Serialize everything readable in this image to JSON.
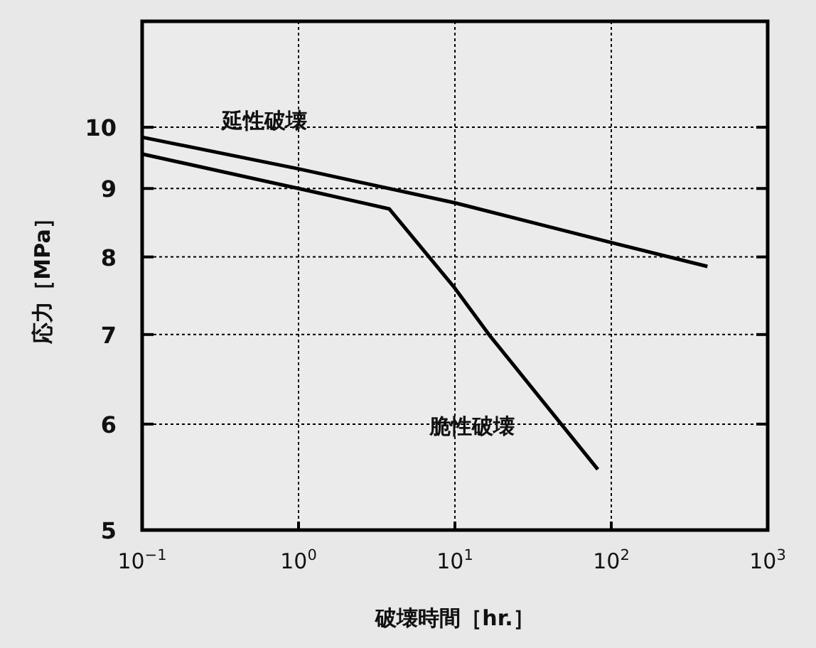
{
  "chart_data": {
    "type": "line",
    "xlabel": "破壊時間［hr.］",
    "ylabel": "応力［MPa］",
    "log": "xy",
    "xlim": [
      0.1,
      1000
    ],
    "ylim": [
      5,
      12
    ],
    "xticks": [
      {
        "value": 0.1,
        "label": "10$^{−1}$"
      },
      {
        "value": 1,
        "label": "10$^{0}$"
      },
      {
        "value": 10,
        "label": "10$^{1}$"
      },
      {
        "value": 100,
        "label": "10$^{2}$"
      },
      {
        "value": 1000,
        "label": "10$^{3}$"
      }
    ],
    "yticks": [
      5,
      6,
      7,
      8,
      9,
      10
    ],
    "grid": true,
    "line_style": "solid",
    "marker": "none",
    "series": [
      {
        "color": "#000000",
        "x": [
          0.1,
          1,
          10,
          100,
          412
        ],
        "values": [
          9.83,
          9.31,
          8.78,
          8.2,
          7.87
        ]
      },
      {
        "color": "#000000",
        "x": [
          0.1,
          1,
          3.8,
          10,
          16.5,
          82
        ],
        "values": [
          9.55,
          9.0,
          8.69,
          7.58,
          7.0,
          5.55
        ]
      }
    ],
    "annotations": [
      "延性破壊",
      "脆性破壊"
    ]
  }
}
